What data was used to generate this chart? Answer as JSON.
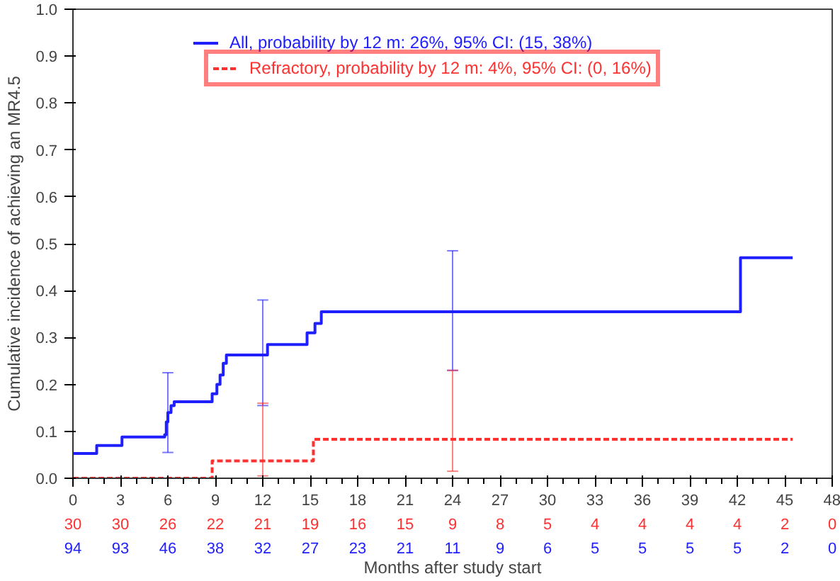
{
  "chart_data": {
    "type": "step",
    "xlabel": "Months after study start",
    "ylabel": "Cumulative incidence of achieving an MR4.5",
    "xlim": [
      0,
      48
    ],
    "ylim": [
      0,
      1.0
    ],
    "xticks": [
      0,
      3,
      6,
      9,
      12,
      15,
      18,
      21,
      24,
      27,
      30,
      33,
      36,
      39,
      42,
      45,
      48
    ],
    "yticks": [
      {
        "value": 0,
        "label": "0.0"
      },
      0.1,
      0.2,
      0.3,
      0.4,
      0.5,
      0.6,
      0.7,
      0.8,
      0.9,
      {
        "value": 1,
        "label": "1.0"
      }
    ],
    "grid": false,
    "legend": "top",
    "series": [
      {
        "name": "All, probability by 12 m: 26%, 95% CI: (15, 38%)",
        "color": "#2020ff",
        "line_style": "solid",
        "x": [
          0,
          1.5,
          3.1,
          5.8,
          5.9,
          6,
          6.2,
          6.4,
          8.8,
          9.1,
          9.3,
          9.5,
          9.7,
          12,
          12.3,
          14.8,
          15.3,
          15.7,
          24,
          42.2,
          45.5
        ],
        "values": [
          0.053,
          0.07,
          0.088,
          0.093,
          0.12,
          0.14,
          0.155,
          0.163,
          0.18,
          0.2,
          0.22,
          0.245,
          0.263,
          0.263,
          0.285,
          0.31,
          0.33,
          0.355,
          0.355,
          0.47,
          0.47
        ],
        "errors": [
          null,
          null,
          null,
          null,
          null,
          [
            0.055,
            0.225
          ],
          null,
          null,
          null,
          null,
          null,
          null,
          null,
          [
            0.155,
            0.38
          ],
          null,
          null,
          null,
          null,
          [
            0.23,
            0.485
          ],
          null,
          null
        ]
      },
      {
        "name": "Refractory, probability by 12 m: 4%, 95% CI: (0, 16%)",
        "color": "#ff3030",
        "line_style": "dashed",
        "x": [
          0,
          8.8,
          12,
          15.2,
          24,
          45.5
        ],
        "values": [
          0,
          0.037,
          0.037,
          0.083,
          0.083,
          0.083
        ],
        "errors": [
          null,
          null,
          [
            0.005,
            0.16
          ],
          null,
          [
            0.015,
            0.23
          ],
          null
        ]
      }
    ],
    "annotations": [
      "30",
      "30",
      "26",
      "22",
      "21",
      "19",
      "16",
      "15",
      "9",
      "8",
      "5",
      "4",
      "4",
      "4",
      "4",
      "2",
      "0",
      "94",
      "93",
      "46",
      "38",
      "32",
      "27",
      "23",
      "21",
      "11",
      "9",
      "6",
      "5",
      "5",
      "5",
      "5",
      "2",
      "0"
    ]
  }
}
